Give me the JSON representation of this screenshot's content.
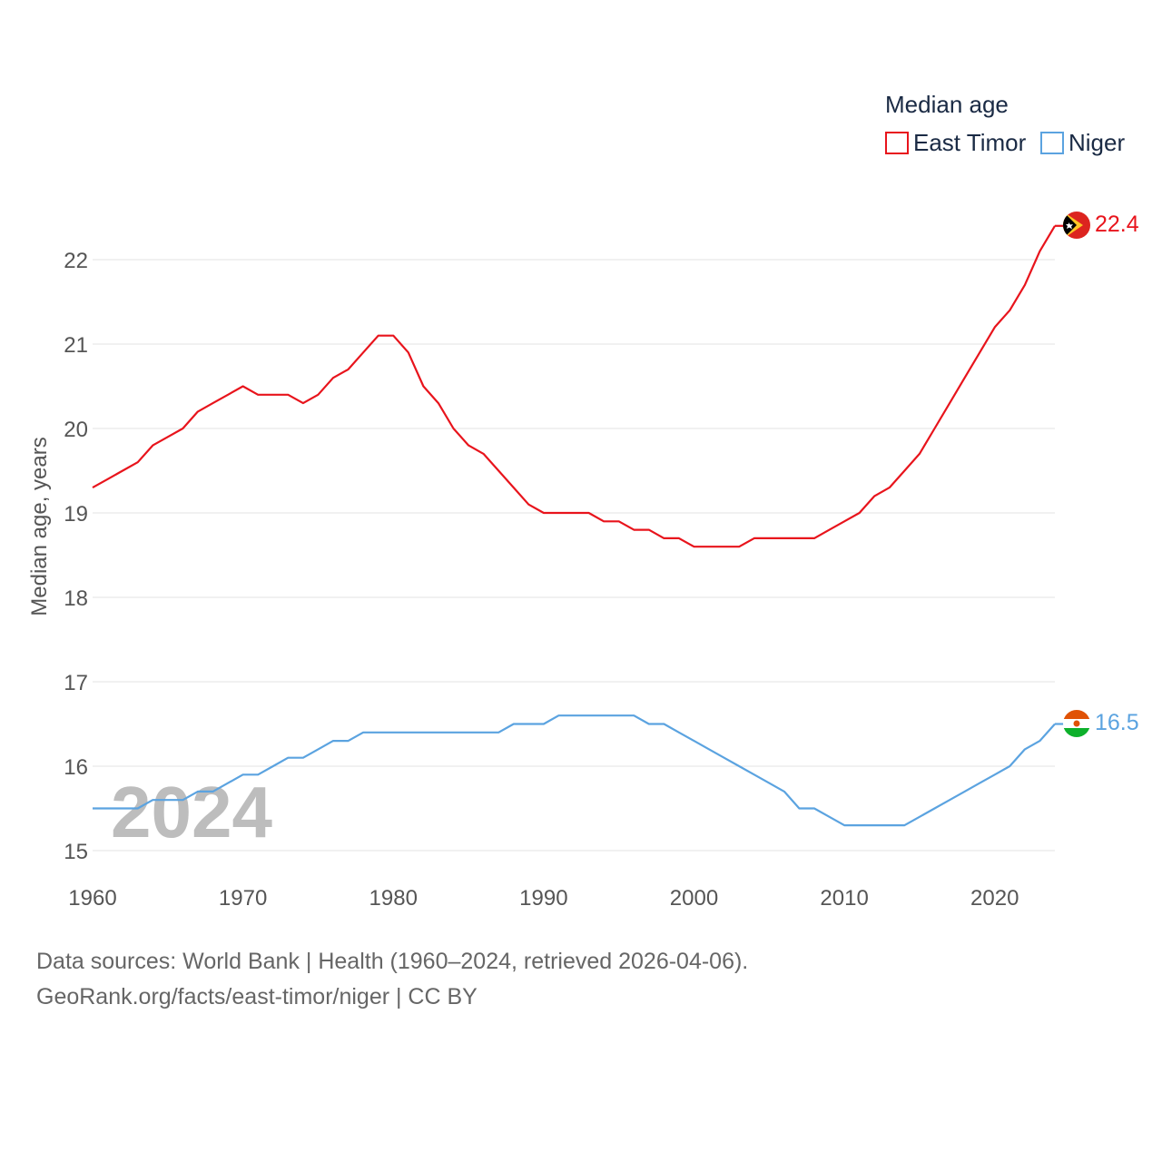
{
  "chart_data": {
    "type": "line",
    "legend_title": "Median age",
    "ylabel": "Median age, years",
    "xlabel": "",
    "xlim": [
      1960,
      2024
    ],
    "ylim": [
      15,
      22.6
    ],
    "x_ticks": [
      1960,
      1970,
      1980,
      1990,
      2000,
      2010,
      2020
    ],
    "y_ticks": [
      15,
      16,
      17,
      18,
      19,
      20,
      21,
      22
    ],
    "year_label": "2024",
    "legend_position": "top-right",
    "series": [
      {
        "name": "East Timor",
        "color": "#e8141c",
        "end_label": "22.4",
        "flag_icon": "east-timor-flag-icon",
        "x": [
          1960,
          1961,
          1962,
          1963,
          1964,
          1965,
          1966,
          1967,
          1968,
          1969,
          1970,
          1971,
          1972,
          1973,
          1974,
          1975,
          1976,
          1977,
          1978,
          1979,
          1980,
          1981,
          1982,
          1983,
          1984,
          1985,
          1986,
          1987,
          1988,
          1989,
          1990,
          1991,
          1992,
          1993,
          1994,
          1995,
          1996,
          1997,
          1998,
          1999,
          2000,
          2001,
          2002,
          2003,
          2004,
          2005,
          2006,
          2007,
          2008,
          2009,
          2010,
          2011,
          2012,
          2013,
          2014,
          2015,
          2016,
          2017,
          2018,
          2019,
          2020,
          2021,
          2022,
          2023,
          2024
        ],
        "values": [
          19.3,
          19.4,
          19.5,
          19.6,
          19.8,
          19.9,
          20.0,
          20.2,
          20.3,
          20.4,
          20.5,
          20.4,
          20.4,
          20.4,
          20.3,
          20.4,
          20.6,
          20.7,
          20.9,
          21.1,
          21.1,
          20.9,
          20.5,
          20.3,
          20.0,
          19.8,
          19.7,
          19.5,
          19.3,
          19.1,
          19.0,
          19.0,
          19.0,
          19.0,
          18.9,
          18.9,
          18.8,
          18.8,
          18.7,
          18.7,
          18.6,
          18.6,
          18.6,
          18.6,
          18.7,
          18.7,
          18.7,
          18.7,
          18.7,
          18.8,
          18.9,
          19.0,
          19.2,
          19.3,
          19.5,
          19.7,
          20.0,
          20.3,
          20.6,
          20.9,
          21.2,
          21.4,
          21.7,
          22.1,
          22.4
        ]
      },
      {
        "name": "Niger",
        "color": "#5ba3e0",
        "end_label": "16.5",
        "flag_icon": "niger-flag-icon",
        "x": [
          1960,
          1961,
          1962,
          1963,
          1964,
          1965,
          1966,
          1967,
          1968,
          1969,
          1970,
          1971,
          1972,
          1973,
          1974,
          1975,
          1976,
          1977,
          1978,
          1979,
          1980,
          1981,
          1982,
          1983,
          1984,
          1985,
          1986,
          1987,
          1988,
          1989,
          1990,
          1991,
          1992,
          1993,
          1994,
          1995,
          1996,
          1997,
          1998,
          1999,
          2000,
          2001,
          2002,
          2003,
          2004,
          2005,
          2006,
          2007,
          2008,
          2009,
          2010,
          2011,
          2012,
          2013,
          2014,
          2015,
          2016,
          2017,
          2018,
          2019,
          2020,
          2021,
          2022,
          2023,
          2024
        ],
        "values": [
          15.5,
          15.5,
          15.5,
          15.5,
          15.6,
          15.6,
          15.6,
          15.7,
          15.7,
          15.8,
          15.9,
          15.9,
          16.0,
          16.1,
          16.1,
          16.2,
          16.3,
          16.3,
          16.4,
          16.4,
          16.4,
          16.4,
          16.4,
          16.4,
          16.4,
          16.4,
          16.4,
          16.4,
          16.5,
          16.5,
          16.5,
          16.6,
          16.6,
          16.6,
          16.6,
          16.6,
          16.6,
          16.5,
          16.5,
          16.4,
          16.3,
          16.2,
          16.1,
          16.0,
          15.9,
          15.8,
          15.7,
          15.5,
          15.5,
          15.4,
          15.3,
          15.3,
          15.3,
          15.3,
          15.3,
          15.4,
          15.5,
          15.6,
          15.7,
          15.8,
          15.9,
          16.0,
          16.2,
          16.3,
          16.5
        ]
      }
    ]
  },
  "footer": {
    "source_line": "Data sources: World Bank | Health (1960–2024, retrieved 2026-04-06).",
    "credit_line": "GeoRank.org/facts/east-timor/niger | CC BY"
  }
}
